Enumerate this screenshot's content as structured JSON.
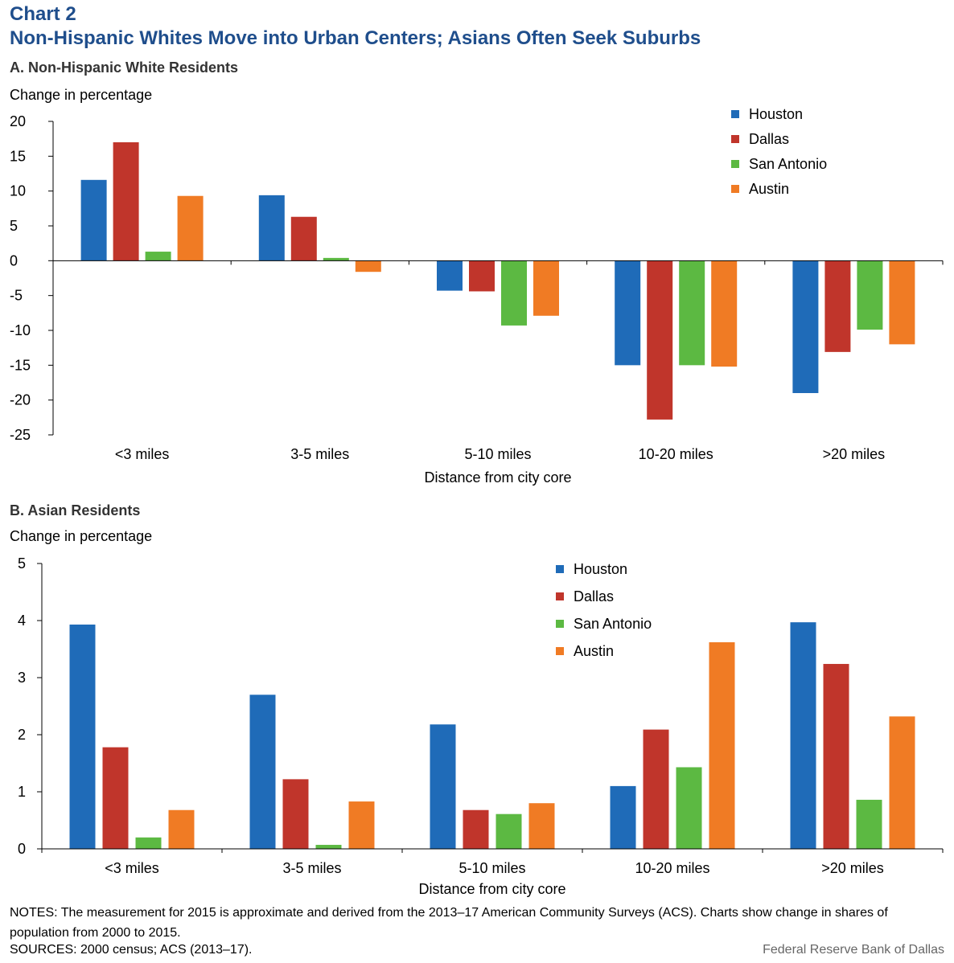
{
  "chart_label": "Chart 2",
  "title": "Non-Hispanic Whites Move into Urban Centers; Asians Often Seek Suburbs",
  "notes": "NOTES: The measurement for 2015 is approximate and derived from the 2013–17 American Community Surveys (ACS). Charts show change in shares of population from 2000 to 2015.",
  "sources": "SOURCES: 2000 census; ACS (2013–17).",
  "credit": "Federal Reserve Bank of Dallas",
  "colors": {
    "Houston": "#1f6bb8",
    "Dallas": "#c0352b",
    "San Antonio": "#5cb942",
    "Austin": "#f07b24"
  },
  "chart_data": [
    {
      "type": "bar",
      "panel_title": "A. Non-Hispanic White Residents",
      "ylabel": "Change in percentage",
      "xlabel": "Distance from city core",
      "categories": [
        "<3 miles",
        "3-5 miles",
        "5-10 miles",
        "10-20 miles",
        ">20 miles"
      ],
      "ylim": [
        -25,
        20
      ],
      "yticks": [
        20,
        15,
        10,
        5,
        0,
        -5,
        -10,
        -15,
        -20,
        -25
      ],
      "legend_position": "top-right",
      "series": [
        {
          "name": "Houston",
          "values": [
            11.6,
            9.4,
            -4.3,
            -15.0,
            -19.0
          ]
        },
        {
          "name": "Dallas",
          "values": [
            17.0,
            6.3,
            -4.4,
            -22.8,
            -13.1
          ]
        },
        {
          "name": "San Antonio",
          "values": [
            1.3,
            0.4,
            -9.3,
            -15.0,
            -9.9
          ]
        },
        {
          "name": "Austin",
          "values": [
            9.3,
            -1.6,
            -7.9,
            -15.2,
            -12.0
          ]
        }
      ]
    },
    {
      "type": "bar",
      "panel_title": "B. Asian Residents",
      "ylabel": "Change in percentage",
      "xlabel": "Distance from city core",
      "categories": [
        "<3 miles",
        "3-5 miles",
        "5-10 miles",
        "10-20 miles",
        ">20 miles"
      ],
      "ylim": [
        0,
        5
      ],
      "yticks": [
        5,
        4,
        3,
        2,
        1,
        0
      ],
      "legend_position": "top-right",
      "series": [
        {
          "name": "Houston",
          "values": [
            3.93,
            2.7,
            2.18,
            1.1,
            3.97
          ]
        },
        {
          "name": "Dallas",
          "values": [
            1.78,
            1.22,
            0.68,
            2.09,
            3.24
          ]
        },
        {
          "name": "San Antonio",
          "values": [
            0.2,
            0.07,
            0.61,
            1.43,
            0.86
          ]
        },
        {
          "name": "Austin",
          "values": [
            0.68,
            0.83,
            0.8,
            3.62,
            2.32
          ]
        }
      ]
    }
  ]
}
